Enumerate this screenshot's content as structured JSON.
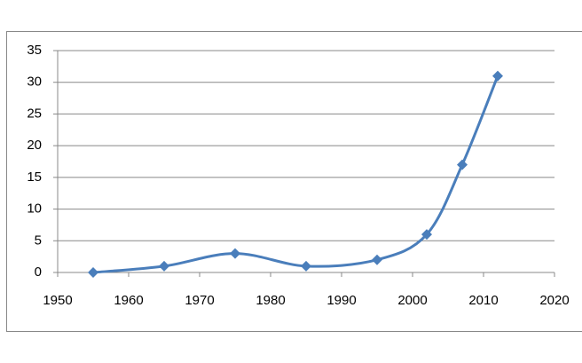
{
  "chart_data": {
    "type": "line",
    "smooth": true,
    "marker": "diamond",
    "series": [
      {
        "color": "#4a7ebb",
        "x": [
          1955,
          1965,
          1975,
          1985,
          1995,
          2002,
          2007,
          2012
        ],
        "values": [
          0,
          1,
          3,
          1,
          2,
          6,
          17,
          31
        ]
      }
    ],
    "xlim": [
      1950,
      2020
    ],
    "xticks": [
      1950,
      1960,
      1970,
      1980,
      1990,
      2000,
      2010,
      2020
    ],
    "ylim": [
      0,
      35
    ],
    "yticks": [
      0,
      5,
      10,
      15,
      20,
      25,
      30,
      35
    ],
    "grid": true
  }
}
